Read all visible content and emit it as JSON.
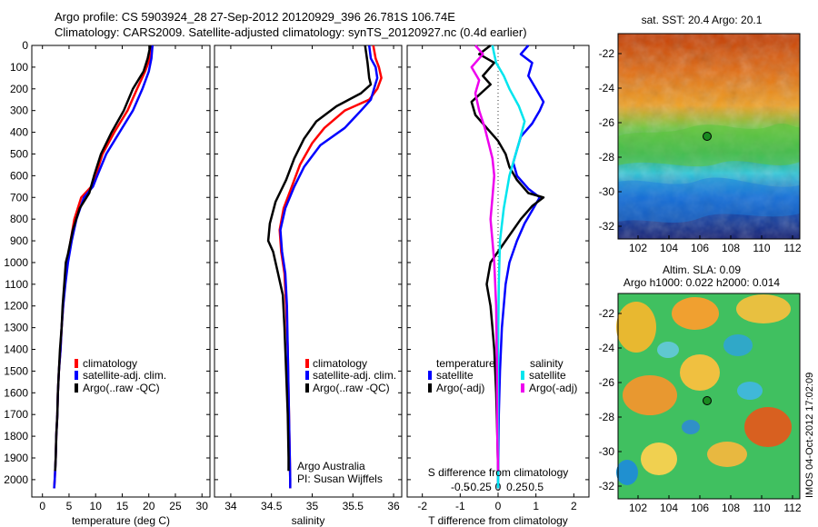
{
  "header": {
    "title_line1": "Argo profile: CS 5903924_28 27-Sep-2012 20120929_396 26.781S 106.74E",
    "title_line2": "Climatology: CARS2009. Satellite-adjusted climatology: synTS_20120927.nc (0.4d earlier)"
  },
  "colors": {
    "climatology": "#ff0000",
    "satellite": "#0000ff",
    "argo": "#000000",
    "salinity_satellite": "#00e5ee",
    "salinity_argo": "#ee00ee"
  },
  "chart_data": [
    {
      "id": "temperature",
      "type": "line",
      "xlabel": "temperature (deg C)",
      "xticks": [
        0,
        5,
        10,
        15,
        20,
        25,
        30
      ],
      "xlim": [
        -2,
        31.5
      ],
      "ylim": [
        0,
        2080
      ],
      "yticks": [
        0,
        100,
        200,
        300,
        400,
        500,
        600,
        700,
        800,
        900,
        1000,
        1100,
        1200,
        1300,
        1400,
        1500,
        1600,
        1700,
        1800,
        1900,
        2000
      ],
      "legend": [
        "climatology",
        "satellite-adj. clim.",
        "Argo(..raw -QC)"
      ],
      "series": [
        {
          "name": "climatology",
          "color": "#ff0000",
          "points": [
            [
              20.6,
              0
            ],
            [
              20.2,
              60
            ],
            [
              19.3,
              120
            ],
            [
              17.8,
              200
            ],
            [
              16.0,
              300
            ],
            [
              13.5,
              400
            ],
            [
              11.3,
              500
            ],
            [
              10.0,
              600
            ],
            [
              9.2,
              650
            ],
            [
              7.3,
              700
            ],
            [
              6.0,
              800
            ],
            [
              5.3,
              900
            ],
            [
              4.7,
              1000
            ],
            [
              4.2,
              1100
            ],
            [
              3.9,
              1200
            ],
            [
              3.6,
              1300
            ],
            [
              3.4,
              1400
            ],
            [
              3.1,
              1500
            ],
            [
              2.9,
              1600
            ],
            [
              2.8,
              1700
            ],
            [
              2.6,
              1800
            ],
            [
              2.5,
              1900
            ],
            [
              2.3,
              2000
            ],
            [
              2.2,
              2040
            ]
          ]
        },
        {
          "name": "satellite-adj. clim.",
          "color": "#0000ff",
          "points": [
            [
              20.7,
              0
            ],
            [
              20.5,
              60
            ],
            [
              20.0,
              120
            ],
            [
              18.8,
              200
            ],
            [
              17.0,
              300
            ],
            [
              14.5,
              400
            ],
            [
              12.0,
              500
            ],
            [
              10.3,
              600
            ],
            [
              9.5,
              650
            ],
            [
              7.8,
              700
            ],
            [
              6.4,
              800
            ],
            [
              5.5,
              900
            ],
            [
              4.8,
              1000
            ],
            [
              4.3,
              1100
            ],
            [
              3.9,
              1200
            ],
            [
              3.6,
              1300
            ],
            [
              3.4,
              1400
            ],
            [
              3.1,
              1500
            ],
            [
              2.9,
              1600
            ],
            [
              2.8,
              1700
            ],
            [
              2.6,
              1800
            ],
            [
              2.5,
              1900
            ],
            [
              2.3,
              2000
            ],
            [
              2.2,
              2040
            ]
          ]
        },
        {
          "name": "Argo(..raw -QC)",
          "color": "#000000",
          "points": [
            [
              20.3,
              0
            ],
            [
              19.8,
              60
            ],
            [
              19.0,
              120
            ],
            [
              17.0,
              200
            ],
            [
              15.3,
              300
            ],
            [
              13.0,
              400
            ],
            [
              11.0,
              500
            ],
            [
              9.7,
              600
            ],
            [
              8.8,
              680
            ],
            [
              7.0,
              750
            ],
            [
              5.7,
              850
            ],
            [
              4.8,
              960
            ],
            [
              4.4,
              1000
            ],
            [
              4.1,
              1100
            ],
            [
              3.8,
              1200
            ],
            [
              3.6,
              1300
            ],
            [
              3.3,
              1400
            ],
            [
              3.1,
              1500
            ],
            [
              2.9,
              1600
            ],
            [
              2.8,
              1700
            ],
            [
              2.6,
              1800
            ],
            [
              2.5,
              1900
            ],
            [
              2.4,
              1960
            ]
          ]
        }
      ]
    },
    {
      "id": "salinity",
      "type": "line",
      "xlabel": "salinity",
      "xticks": [
        34,
        34.5,
        35,
        35.5,
        36
      ],
      "xlim": [
        33.8,
        36.1
      ],
      "ylim": [
        0,
        2080
      ],
      "legend": [
        "climatology",
        "satellite-adj. clim.",
        "Argo(..raw -QC)"
      ],
      "annotation": [
        "Argo Australia",
        "PI: Susan Wijffels"
      ],
      "series": [
        {
          "name": "climatology",
          "color": "#ff0000",
          "points": [
            [
              35.75,
              0
            ],
            [
              35.78,
              60
            ],
            [
              35.82,
              100
            ],
            [
              35.85,
              150
            ],
            [
              35.8,
              200
            ],
            [
              35.7,
              250
            ],
            [
              35.4,
              300
            ],
            [
              35.15,
              380
            ],
            [
              35.0,
              450
            ],
            [
              34.85,
              550
            ],
            [
              34.75,
              650
            ],
            [
              34.65,
              750
            ],
            [
              34.6,
              850
            ],
            [
              34.62,
              950
            ],
            [
              34.66,
              1050
            ],
            [
              34.68,
              1200
            ],
            [
              34.7,
              1400
            ],
            [
              34.71,
              1600
            ],
            [
              34.72,
              1800
            ],
            [
              34.73,
              2000
            ],
            [
              34.73,
              2040
            ]
          ]
        },
        {
          "name": "satellite-adj. clim.",
          "color": "#0000ff",
          "points": [
            [
              35.7,
              0
            ],
            [
              35.72,
              60
            ],
            [
              35.78,
              100
            ],
            [
              35.8,
              150
            ],
            [
              35.76,
              200
            ],
            [
              35.72,
              250
            ],
            [
              35.6,
              300
            ],
            [
              35.4,
              380
            ],
            [
              35.1,
              460
            ],
            [
              34.9,
              560
            ],
            [
              34.78,
              650
            ],
            [
              34.67,
              750
            ],
            [
              34.61,
              850
            ],
            [
              34.63,
              950
            ],
            [
              34.67,
              1050
            ],
            [
              34.69,
              1200
            ],
            [
              34.7,
              1400
            ],
            [
              34.71,
              1600
            ],
            [
              34.72,
              1800
            ],
            [
              34.73,
              2000
            ],
            [
              34.73,
              2040
            ]
          ]
        },
        {
          "name": "Argo(..raw -QC)",
          "color": "#000000",
          "points": [
            [
              35.65,
              0
            ],
            [
              35.68,
              80
            ],
            [
              35.7,
              150
            ],
            [
              35.72,
              180
            ],
            [
              35.6,
              220
            ],
            [
              35.3,
              280
            ],
            [
              35.05,
              350
            ],
            [
              34.9,
              430
            ],
            [
              34.78,
              520
            ],
            [
              34.68,
              620
            ],
            [
              34.55,
              720
            ],
            [
              34.48,
              820
            ],
            [
              34.46,
              900
            ],
            [
              34.52,
              950
            ],
            [
              34.58,
              1050
            ],
            [
              34.64,
              1150
            ],
            [
              34.66,
              1300
            ],
            [
              34.68,
              1500
            ],
            [
              34.7,
              1700
            ],
            [
              34.71,
              1900
            ],
            [
              34.71,
              1960
            ]
          ]
        }
      ]
    },
    {
      "id": "difference",
      "type": "line",
      "xlabel": "T difference from climatology",
      "top_label": "S difference from climatology",
      "xticks": [
        -2,
        -1,
        0,
        1,
        2
      ],
      "xlim": [
        -2.4,
        2.4
      ],
      "top_ticks": [
        -0.5,
        -0.25,
        0,
        0.25,
        0.5
      ],
      "ylim": [
        0,
        2080
      ],
      "legend_groups": [
        {
          "title": "temperature",
          "items": [
            "satellite",
            "Argo(-adj)"
          ]
        },
        {
          "title": "salinity",
          "items": [
            "satellite",
            "Argo(-adj)"
          ]
        }
      ],
      "series": [
        {
          "name": "T satellite",
          "color": "#0000ff",
          "points": [
            [
              0.8,
              0
            ],
            [
              0.6,
              40
            ],
            [
              0.9,
              80
            ],
            [
              0.8,
              140
            ],
            [
              1.0,
              200
            ],
            [
              1.2,
              260
            ],
            [
              1.1,
              300
            ],
            [
              0.9,
              360
            ],
            [
              0.6,
              420
            ],
            [
              0.5,
              480
            ],
            [
              0.4,
              540
            ],
            [
              0.5,
              600
            ],
            [
              0.8,
              660
            ],
            [
              1.1,
              700
            ],
            [
              0.9,
              760
            ],
            [
              0.7,
              820
            ],
            [
              0.5,
              900
            ],
            [
              0.3,
              1000
            ],
            [
              0.2,
              1100
            ],
            [
              0.1,
              1300
            ],
            [
              0.05,
              1500
            ],
            [
              0.02,
              1700
            ],
            [
              0.0,
              2000
            ],
            [
              0.0,
              2040
            ]
          ]
        },
        {
          "name": "T Argo(-adj)",
          "color": "#000000",
          "points": [
            [
              -0.2,
              0
            ],
            [
              -0.5,
              40
            ],
            [
              -0.1,
              80
            ],
            [
              -0.4,
              140
            ],
            [
              -0.2,
              180
            ],
            [
              -0.7,
              260
            ],
            [
              -0.6,
              320
            ],
            [
              -0.3,
              380
            ],
            [
              0.0,
              440
            ],
            [
              0.2,
              500
            ],
            [
              0.3,
              560
            ],
            [
              0.5,
              620
            ],
            [
              0.8,
              680
            ],
            [
              1.2,
              700
            ],
            [
              0.9,
              740
            ],
            [
              0.6,
              800
            ],
            [
              0.2,
              900
            ],
            [
              -0.2,
              1000
            ],
            [
              -0.3,
              1100
            ],
            [
              -0.2,
              1200
            ],
            [
              -0.15,
              1300
            ],
            [
              -0.1,
              1400
            ],
            [
              -0.05,
              1600
            ],
            [
              -0.02,
              1800
            ],
            [
              0.0,
              1960
            ]
          ]
        },
        {
          "name": "S satellite",
          "color": "#00e5ee",
          "points": [
            [
              -0.15,
              0
            ],
            [
              -0.1,
              40
            ],
            [
              -0.05,
              80
            ],
            [
              0.15,
              140
            ],
            [
              0.3,
              200
            ],
            [
              0.55,
              280
            ],
            [
              0.7,
              350
            ],
            [
              0.55,
              450
            ],
            [
              0.3,
              600
            ],
            [
              0.15,
              750
            ],
            [
              0.05,
              900
            ],
            [
              0.02,
              1100
            ],
            [
              0.0,
              1400
            ],
            [
              0.0,
              1800
            ],
            [
              0.0,
              2040
            ]
          ]
        },
        {
          "name": "S Argo(-adj)",
          "color": "#ee00ee",
          "points": [
            [
              -0.6,
              0
            ],
            [
              -0.4,
              40
            ],
            [
              -0.7,
              100
            ],
            [
              -0.5,
              160
            ],
            [
              -0.6,
              220
            ],
            [
              -0.5,
              300
            ],
            [
              -0.35,
              380
            ],
            [
              -0.25,
              450
            ],
            [
              -0.15,
              520
            ],
            [
              -0.1,
              600
            ],
            [
              -0.15,
              700
            ],
            [
              -0.2,
              800
            ],
            [
              -0.15,
              900
            ],
            [
              -0.1,
              1000
            ],
            [
              -0.05,
              1200
            ],
            [
              -0.03,
              1500
            ],
            [
              -0.02,
              1800
            ],
            [
              0.0,
              1960
            ]
          ]
        }
      ]
    }
  ],
  "maps": {
    "sst": {
      "title": "sat. SST: 20.4  Argo: 20.1",
      "xticks": [
        "102",
        "104",
        "106",
        "108",
        "110",
        "112"
      ],
      "yticks": [
        "-22",
        "-24",
        "-26",
        "-28",
        "-30",
        "-32"
      ]
    },
    "sla": {
      "title1": "Altim. SLA: 0.09",
      "title2": "Argo h1000: 0.022  h2000: 0.014",
      "xticks": [
        "102",
        "104",
        "106",
        "108",
        "110",
        "112"
      ],
      "yticks": [
        "-22",
        "-24",
        "-26",
        "-28",
        "-30",
        "-32"
      ]
    },
    "argo_position": {
      "lon": 106.74,
      "lat": -26.781
    }
  },
  "footer": {
    "stamp": "IMOS 04-Oct-2012 17:02:09"
  }
}
